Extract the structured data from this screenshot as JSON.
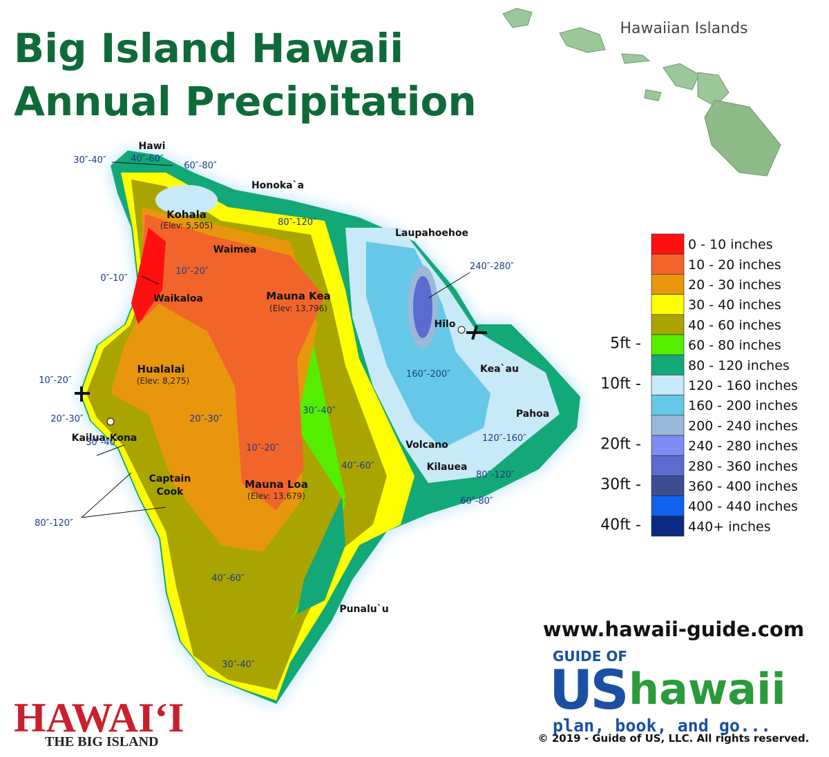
{
  "title": [
    "Big Island Hawaii",
    "Annual Precipitation"
  ],
  "inset_title": "Hawaiian Islands",
  "legend": [
    {
      "label": "0 - 10 inches",
      "color": "#ff1010"
    },
    {
      "label": "10 - 20 inches",
      "color": "#f2652a"
    },
    {
      "label": "20 - 30 inches",
      "color": "#e8960e"
    },
    {
      "label": "30 - 40 inches",
      "color": "#ffff00"
    },
    {
      "label": "40 - 60 inches",
      "color": "#a9a400"
    },
    {
      "label": "60 - 80 inches",
      "color": "#55ee00"
    },
    {
      "label": "80 - 120 inches",
      "color": "#12a877"
    },
    {
      "label": "120 - 160 inches",
      "color": "#c8e9f7"
    },
    {
      "label": "160 - 200 inches",
      "color": "#66c8e8"
    },
    {
      "label": "200 - 240 inches",
      "color": "#9bb8d8"
    },
    {
      "label": "240 - 280 inches",
      "color": "#7c8cf2"
    },
    {
      "label": "280 - 360 inches",
      "color": "#5b6bd0"
    },
    {
      "label": "360 - 400 inches",
      "color": "#3b4e92"
    },
    {
      "label": "400 - 440 inches",
      "color": "#1062ee"
    },
    {
      "label": "440+ inches",
      "color": "#0c2a82"
    }
  ],
  "depth_scale": [
    "5ft -",
    "10ft -",
    "20ft -",
    "30ft -",
    "40ft -"
  ],
  "places": [
    "Hawi",
    "Honoka`a",
    "Kohala",
    "(Elev: 5,505)",
    "Waimea",
    "Laupahoehoe",
    "Mauna Kea",
    "(Elev: 13,796)",
    "Waikaloa",
    "Hilo",
    "Kea`au",
    "Hualalai",
    "(Elev: 8,275)",
    "Pahoa",
    "Kailua-Kona",
    "Volcano",
    "Kilauea",
    "Captain",
    "Cook",
    "Mauna Loa",
    "(Elev: 13,679)",
    "Punalu`u"
  ],
  "rain_labels": [
    "30″-40″",
    "40″-60″",
    "60″-80″",
    "80″-120″",
    "10″-20″",
    "0″-10″",
    "240″-280″",
    "160″-200″",
    "10″-20″",
    "20″-30″",
    "30″-40″",
    "20″-30″",
    "120″-160″",
    "10″-20″",
    "30″-40″",
    "40″-60″",
    "80″-120″",
    "60″-80″",
    "80″-120″",
    "40″-60″",
    "30″-40″"
  ],
  "website": "www.hawaii-guide.com",
  "logo": {
    "top": "GUIDE OF",
    "us": "US",
    "hawaii": "hawaii",
    "tagline": "plan, book, and go..."
  },
  "copyright": "© 2019  - Guide of US, LLC. All rights reserved.",
  "badge": {
    "name": "HAWAI‘I",
    "sub": "THE BIG ISLAND"
  }
}
